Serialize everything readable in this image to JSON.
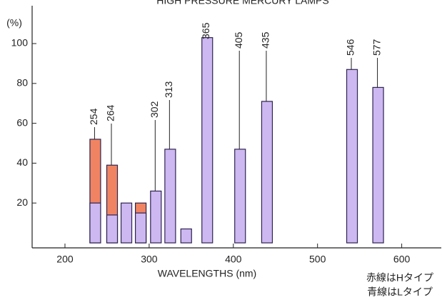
{
  "chart_data": {
    "type": "bar",
    "title": "HIGH PRESSURE MERCURY LAMPS",
    "y_label": "(%)",
    "x_label": "WAVELENGTHS (nm)",
    "notes": [
      "赤線はHタイプ",
      "青線はLタイプ"
    ],
    "x": [
      236,
      256,
      273,
      290,
      308,
      325,
      344,
      369,
      408,
      440,
      541,
      572
    ],
    "line_labels": [
      "254",
      "264",
      null,
      null,
      "302",
      "313",
      null,
      "365",
      "405",
      "435",
      "546",
      "577"
    ],
    "series": [
      {
        "name": "赤線はHタイプ",
        "color": "#f08462",
        "values": [
          52,
          39,
          null,
          20,
          null,
          null,
          null,
          null,
          null,
          null,
          null,
          null
        ]
      },
      {
        "name": "青線はLタイプ",
        "color": "#cdb8f2",
        "values": [
          20,
          14,
          20,
          15,
          26,
          47,
          7,
          103,
          47,
          71,
          87,
          78
        ]
      }
    ],
    "xlim": [
      161,
      647
    ],
    "xticks": [
      200,
      300,
      400,
      500,
      600
    ],
    "ylim": [
      -2.5,
      119
    ],
    "yticks": [
      20,
      40,
      60,
      80,
      100
    ]
  }
}
